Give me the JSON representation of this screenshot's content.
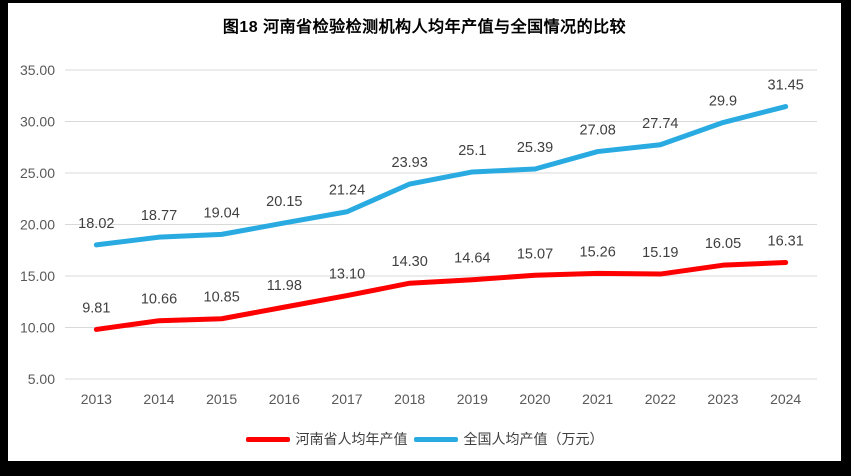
{
  "chart_data": {
    "type": "line",
    "title": "图18  河南省检验检测机构人均年产值与全国情况的比较",
    "categories": [
      "2013",
      "2014",
      "2015",
      "2016",
      "2017",
      "2018",
      "2019",
      "2020",
      "2021",
      "2022",
      "2023",
      "2024"
    ],
    "series": [
      {
        "name": "河南省人均年产值",
        "color": "#FF0000",
        "values": [
          9.81,
          10.66,
          10.85,
          11.98,
          13.1,
          14.3,
          14.64,
          15.07,
          15.26,
          15.19,
          16.05,
          16.31
        ],
        "labels": [
          "9.81",
          "10.66",
          "10.85",
          "11.98",
          "13.10",
          "14.30",
          "14.64",
          "15.07",
          "15.26",
          "15.19",
          "16.05",
          "16.31"
        ]
      },
      {
        "name": "全国人均产值（万元）",
        "color": "#29ABE2",
        "values": [
          18.02,
          18.77,
          19.04,
          20.15,
          21.24,
          23.93,
          25.1,
          25.39,
          27.08,
          27.74,
          29.9,
          31.45
        ],
        "labels": [
          "18.02",
          "18.77",
          "19.04",
          "20.15",
          "21.24",
          "23.93",
          "25.1",
          "25.39",
          "27.08",
          "27.74",
          "29.9",
          "31.45"
        ]
      }
    ],
    "ylim": [
      5,
      35
    ],
    "ytick_step": 5,
    "ytick_labels": [
      "5.00",
      "10.00",
      "15.00",
      "20.00",
      "25.00",
      "30.00",
      "35.00"
    ],
    "grid": true,
    "legend_position": "bottom",
    "axis_color": "#595959",
    "grid_color": "#D9D9D9",
    "label_color": "#404040",
    "frame_color": "#000000"
  }
}
